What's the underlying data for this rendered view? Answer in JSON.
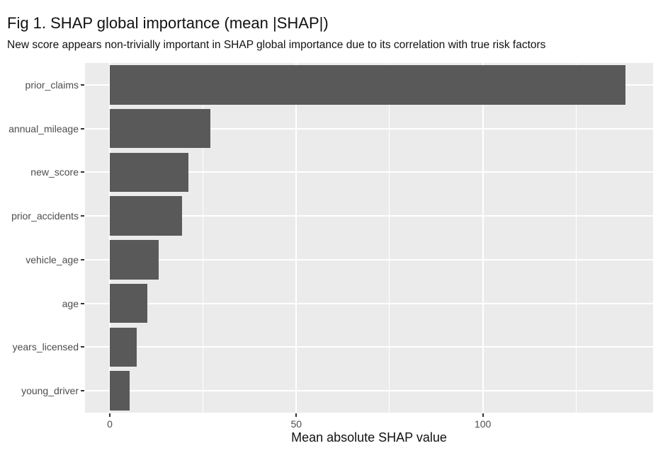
{
  "chart_data": {
    "type": "bar",
    "orientation": "horizontal",
    "title": "Fig 1. SHAP global importance (mean |SHAP|)",
    "subtitle": "New score appears non-trivially important in SHAP global importance due to its correlation with true risk factors",
    "xlabel": "Mean absolute SHAP value",
    "ylabel": "",
    "categories": [
      "prior_claims",
      "annual_mileage",
      "new_score",
      "prior_accidents",
      "vehicle_age",
      "age",
      "years_licensed",
      "young_driver"
    ],
    "values": [
      138.2,
      26.9,
      21.1,
      19.3,
      13.1,
      10.0,
      7.3,
      5.4
    ],
    "x_ticks": [
      0,
      50,
      100
    ],
    "x_tick_labels": [
      "0",
      "50",
      "100"
    ],
    "x_minor_ticks": [
      25,
      75,
      125
    ],
    "xlim": [
      -6.8,
      145.7
    ],
    "grid": true,
    "legend": "none",
    "bar_width_frac": 0.9,
    "colors": {
      "bar_fill": "#595959",
      "panel_bg": "#ebebeb",
      "grid_major": "#ffffff",
      "grid_minor": "#ffffff",
      "axis_text": "#4d4d4d",
      "tick_mark": "#333333",
      "title_text": "#111111"
    }
  }
}
